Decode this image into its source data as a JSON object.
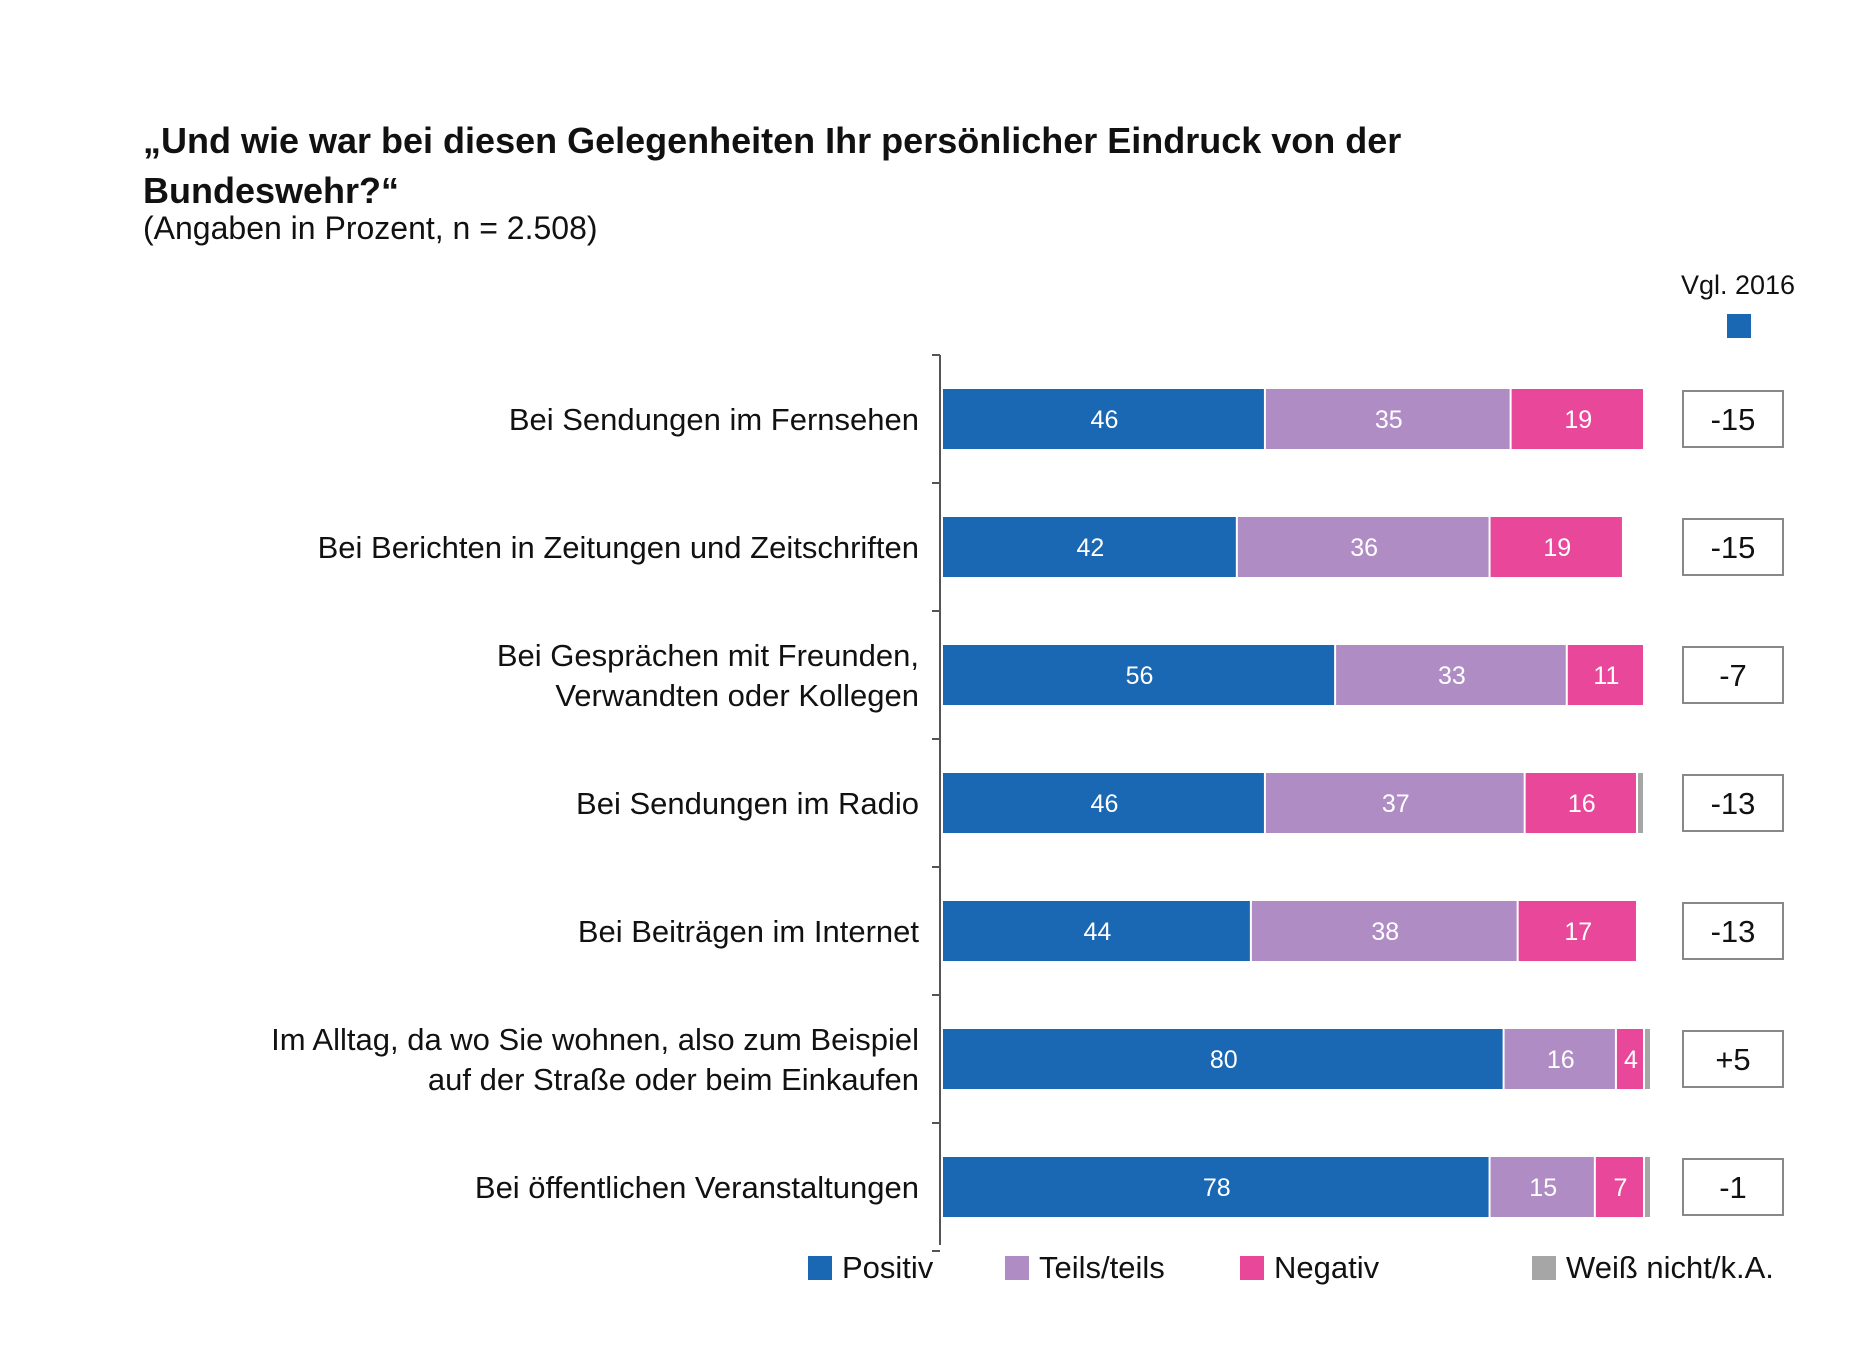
{
  "title": "„Und wie war bei diesen Gelegenheiten Ihr persönlicher Eindruck von der Bundeswehr?“",
  "subtitle": "(Angaben in Prozent, n = 2.508)",
  "comparison_header": "Vgl. 2016",
  "colors": {
    "positiv": "#1a67b3",
    "teils": "#b08cc4",
    "negativ": "#e8479a",
    "weiss_nicht": "#a6a6a6",
    "comparison_swatch": "#1a67b3"
  },
  "chart_data": {
    "type": "bar",
    "orientation": "horizontal",
    "stacked": true,
    "categories": [
      [
        "Bei Sendungen im Fernsehen"
      ],
      [
        "Bei Berichten in Zeitungen und Zeitschriften"
      ],
      [
        "Bei Gesprächen mit Freunden,",
        "Verwandten oder Kollegen"
      ],
      [
        "Bei Sendungen im Radio"
      ],
      [
        "Bei Beiträgen im Internet"
      ],
      [
        "Im Alltag, da wo Sie wohnen, also zum Beispiel",
        "auf der Straße oder beim Einkaufen"
      ],
      [
        "Bei öffentlichen Veranstaltungen"
      ]
    ],
    "series": [
      {
        "name": "Positiv",
        "color": "#1a67b3",
        "values": [
          46,
          42,
          56,
          46,
          44,
          80,
          78
        ]
      },
      {
        "name": "Teils/teils",
        "color": "#b08cc4",
        "values": [
          35,
          36,
          33,
          37,
          38,
          16,
          15
        ]
      },
      {
        "name": "Negativ",
        "color": "#e8479a",
        "values": [
          19,
          19,
          11,
          16,
          17,
          4,
          7
        ]
      },
      {
        "name": "Weiß nicht/k.A.",
        "color": "#a6a6a6",
        "values": [
          0,
          0,
          0,
          1,
          0,
          1,
          1
        ]
      }
    ],
    "comparison_values": [
      "-15",
      "-15",
      "-7",
      "-13",
      "-13",
      "+5",
      "-1"
    ],
    "xlim": [
      0,
      100
    ],
    "grid": false
  }
}
